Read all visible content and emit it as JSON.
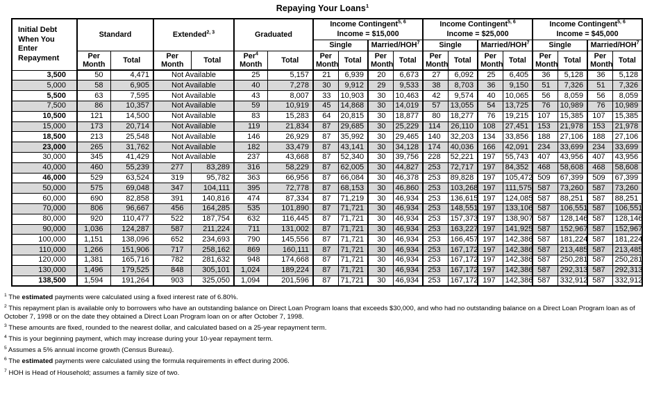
{
  "colors": {
    "stripe": "#d9d9d9",
    "border": "#000000",
    "text": "#000000"
  },
  "title": {
    "text": "Repaying Your Loans",
    "sup": "1"
  },
  "table": {
    "initial_debt_lines": [
      "Initial Debt",
      "When You",
      "Enter",
      "Repayment"
    ],
    "groups": {
      "standard": {
        "label": "Standard"
      },
      "extended": {
        "label": "Extended",
        "sup": "2, 3"
      },
      "graduated": {
        "label": "Graduated"
      },
      "income_contingent": {
        "label": "Income Contingent",
        "sup": "5, 6",
        "incomes": [
          "Income = $15,000",
          "Income = $25,000",
          "Income = $45,000"
        ]
      }
    },
    "subheaders": {
      "single": "Single",
      "married": "Married/HOH",
      "married_sup": "7",
      "per": "Per",
      "month": "Month",
      "total": "Total",
      "graduated_per_sup": "4"
    },
    "not_available": "Not Available",
    "rows": [
      {
        "debt": "3,500",
        "bold": true,
        "standard": [
          "50",
          "4,471"
        ],
        "extended": null,
        "graduated": [
          "25",
          "5,157"
        ],
        "ic15": [
          "21",
          "6,939",
          "20",
          "6,673"
        ],
        "ic25": [
          "27",
          "6,092",
          "25",
          "6,405"
        ],
        "ic45": [
          "36",
          "5,128",
          "36",
          "5,128"
        ]
      },
      {
        "debt": "5,000",
        "bold": false,
        "standard": [
          "58",
          "6,905"
        ],
        "extended": null,
        "graduated": [
          "40",
          "7,278"
        ],
        "ic15": [
          "30",
          "9,912",
          "29",
          "9,533"
        ],
        "ic25": [
          "38",
          "8,703",
          "36",
          "9,150"
        ],
        "ic45": [
          "51",
          "7,326",
          "51",
          "7,326"
        ]
      },
      {
        "debt": "5,500",
        "bold": true,
        "standard": [
          "63",
          "7,595"
        ],
        "extended": null,
        "graduated": [
          "43",
          "8,007"
        ],
        "ic15": [
          "33",
          "10,903",
          "30",
          "10,463"
        ],
        "ic25": [
          "42",
          "9,574",
          "40",
          "10,065"
        ],
        "ic45": [
          "56",
          "8,059",
          "56",
          "8,059"
        ]
      },
      {
        "debt": "7,500",
        "bold": false,
        "standard": [
          "86",
          "10,357"
        ],
        "extended": null,
        "graduated": [
          "59",
          "10,919"
        ],
        "ic15": [
          "45",
          "14,868",
          "30",
          "14,019"
        ],
        "ic25": [
          "57",
          "13,055",
          "54",
          "13,725"
        ],
        "ic45": [
          "76",
          "10,989",
          "76",
          "10,989"
        ]
      },
      {
        "debt": "10,500",
        "bold": true,
        "standard": [
          "121",
          "14,500"
        ],
        "extended": null,
        "graduated": [
          "83",
          "15,283"
        ],
        "ic15": [
          "64",
          "20,815",
          "30",
          "18,877"
        ],
        "ic25": [
          "80",
          "18,277",
          "76",
          "19,215"
        ],
        "ic45": [
          "107",
          "15,385",
          "107",
          "15,385"
        ]
      },
      {
        "debt": "15,000",
        "bold": false,
        "standard": [
          "173",
          "20,714"
        ],
        "extended": null,
        "graduated": [
          "119",
          "21,834"
        ],
        "ic15": [
          "87",
          "29,685",
          "30",
          "25,229"
        ],
        "ic25": [
          "114",
          "26,110",
          "108",
          "27,451"
        ],
        "ic45": [
          "153",
          "21,978",
          "153",
          "21,978"
        ]
      },
      {
        "debt": "18,500",
        "bold": true,
        "standard": [
          "213",
          "25,548"
        ],
        "extended": null,
        "graduated": [
          "146",
          "26,929"
        ],
        "ic15": [
          "87",
          "35,992",
          "30",
          "29,465"
        ],
        "ic25": [
          "140",
          "32,203",
          "134",
          "33,856"
        ],
        "ic45": [
          "188",
          "27,106",
          "188",
          "27,106"
        ]
      },
      {
        "debt": "23,000",
        "bold": true,
        "standard": [
          "265",
          "31,762"
        ],
        "extended": null,
        "graduated": [
          "182",
          "33,479"
        ],
        "ic15": [
          "87",
          "43,141",
          "30",
          "34,128"
        ],
        "ic25": [
          "174",
          "40,036",
          "166",
          "42,091"
        ],
        "ic45": [
          "234",
          "33,699",
          "234",
          "33,699"
        ]
      },
      {
        "debt": "30,000",
        "bold": false,
        "standard": [
          "345",
          "41,429"
        ],
        "extended": null,
        "graduated": [
          "237",
          "43,668"
        ],
        "ic15": [
          "87",
          "52,340",
          "30",
          "39,756"
        ],
        "ic25": [
          "228",
          "52,221",
          "197",
          "55,743"
        ],
        "ic45": [
          "407",
          "43,956",
          "407",
          "43,956"
        ]
      },
      {
        "debt": "40,000",
        "bold": false,
        "standard": [
          "460",
          "55,239"
        ],
        "extended": [
          "277",
          "83,289"
        ],
        "graduated": [
          "316",
          "58,229"
        ],
        "ic15": [
          "87",
          "62,005",
          "30",
          "44,827"
        ],
        "ic25": [
          "253",
          "72,717",
          "197",
          "84,352"
        ],
        "ic45": [
          "468",
          "58,608",
          "468",
          "58,608"
        ]
      },
      {
        "debt": "46,000",
        "bold": true,
        "standard": [
          "529",
          "63,524"
        ],
        "extended": [
          "319",
          "95,782"
        ],
        "graduated": [
          "363",
          "66,956"
        ],
        "ic15": [
          "87",
          "66,084",
          "30",
          "46,378"
        ],
        "ic25": [
          "253",
          "89,828",
          "197",
          "105,472"
        ],
        "ic45": [
          "509",
          "67,399",
          "509",
          "67,399"
        ]
      },
      {
        "debt": "50,000",
        "bold": false,
        "standard": [
          "575",
          "69,048"
        ],
        "extended": [
          "347",
          "104,111"
        ],
        "graduated": [
          "395",
          "72,778"
        ],
        "ic15": [
          "87",
          "68,153",
          "30",
          "46,860"
        ],
        "ic25": [
          "253",
          "103,268",
          "197",
          "111,575"
        ],
        "ic45": [
          "587",
          "73,260",
          "587",
          "73,260"
        ]
      },
      {
        "debt": "60,000",
        "bold": false,
        "standard": [
          "690",
          "82,858"
        ],
        "extended": [
          "391",
          "140,816"
        ],
        "graduated": [
          "474",
          "87,334"
        ],
        "ic15": [
          "87",
          "71,219",
          "30",
          "46,934"
        ],
        "ic25": [
          "253",
          "136,615",
          "197",
          "124,085"
        ],
        "ic45": [
          "587",
          "88,251",
          "587",
          "88,251"
        ]
      },
      {
        "debt": "70,000",
        "bold": false,
        "standard": [
          "806",
          "96,667"
        ],
        "extended": [
          "456",
          "164,285"
        ],
        "graduated": [
          "535",
          "101,890"
        ],
        "ic15": [
          "87",
          "71,721",
          "30",
          "46,934"
        ],
        "ic25": [
          "253",
          "148,551",
          "197",
          "133,106"
        ],
        "ic45": [
          "587",
          "106,551",
          "587",
          "106,551"
        ]
      },
      {
        "debt": "80,000",
        "bold": false,
        "standard": [
          "920",
          "110,477"
        ],
        "extended": [
          "522",
          "187,754"
        ],
        "graduated": [
          "632",
          "116,445"
        ],
        "ic15": [
          "87",
          "71,721",
          "30",
          "46,934"
        ],
        "ic25": [
          "253",
          "157,373",
          "197",
          "138,907"
        ],
        "ic45": [
          "587",
          "128,146",
          "587",
          "128,146"
        ]
      },
      {
        "debt": "90,000",
        "bold": false,
        "standard": [
          "1,036",
          "124,287"
        ],
        "extended": [
          "587",
          "211,224"
        ],
        "graduated": [
          "711",
          "131,002"
        ],
        "ic15": [
          "87",
          "71,721",
          "30",
          "46,934"
        ],
        "ic25": [
          "253",
          "163,227",
          "197",
          "141,925"
        ],
        "ic45": [
          "587",
          "152,967",
          "587",
          "152,967"
        ]
      },
      {
        "debt": "100,000",
        "bold": false,
        "standard": [
          "1,151",
          "138,096"
        ],
        "extended": [
          "652",
          "234,693"
        ],
        "graduated": [
          "790",
          "145,556"
        ],
        "ic15": [
          "87",
          "71,721",
          "30",
          "46,934"
        ],
        "ic25": [
          "253",
          "166,457",
          "197",
          "142,386"
        ],
        "ic45": [
          "587",
          "181,224",
          "587",
          "181,224"
        ]
      },
      {
        "debt": "110,000",
        "bold": false,
        "standard": [
          "1,266",
          "151,906"
        ],
        "extended": [
          "717",
          "258,162"
        ],
        "graduated": [
          "869",
          "160,111"
        ],
        "ic15": [
          "87",
          "71,721",
          "30",
          "46,934"
        ],
        "ic25": [
          "253",
          "167,172",
          "197",
          "142,386"
        ],
        "ic45": [
          "587",
          "213,485",
          "587",
          "213,485"
        ]
      },
      {
        "debt": "120,000",
        "bold": false,
        "standard": [
          "1,381",
          "165,716"
        ],
        "extended": [
          "782",
          "281,632"
        ],
        "graduated": [
          "948",
          "174,668"
        ],
        "ic15": [
          "87",
          "71,721",
          "30",
          "46,934"
        ],
        "ic25": [
          "253",
          "167,172",
          "197",
          "142,386"
        ],
        "ic45": [
          "587",
          "250,281",
          "587",
          "250,281"
        ]
      },
      {
        "debt": "130,000",
        "bold": false,
        "standard": [
          "1,496",
          "179,525"
        ],
        "extended": [
          "848",
          "305,101"
        ],
        "graduated": [
          "1,024",
          "189,224"
        ],
        "ic15": [
          "87",
          "71,721",
          "30",
          "46,934"
        ],
        "ic25": [
          "253",
          "167,172",
          "197",
          "142,386"
        ],
        "ic45": [
          "587",
          "292,313",
          "587",
          "292,313"
        ]
      },
      {
        "debt": "138,500",
        "bold": true,
        "standard": [
          "1,594",
          "191,264"
        ],
        "extended": [
          "903",
          "325,050"
        ],
        "graduated": [
          "1,094",
          "201,596"
        ],
        "ic15": [
          "87",
          "71,721",
          "30",
          "46,934"
        ],
        "ic25": [
          "253",
          "167,172",
          "197",
          "142,386"
        ],
        "ic45": [
          "587",
          "332,912",
          "587",
          "332,912"
        ]
      }
    ]
  },
  "footnotes": [
    {
      "sup": "1",
      "text": "The **estimated** payments were calculated using a fixed interest rate of 6.80%."
    },
    {
      "sup": "2",
      "text": "This repayment plan is available only to borrowers who have an outstanding balance on Direct Loan Program loans that exceeds $30,000, and who had no outstanding balance on a Direct Loan Program loan as of October 7, 1998 or on the date they obtained a Direct Loan Program loan on or after October 7, 1998."
    },
    {
      "sup": "3",
      "text": "These amounts are fixed, rounded to the nearest dollar, and calculated based on a 25-year repayment term."
    },
    {
      "sup": "4",
      "text": "This is your beginning payment, which may increase during your 10-year repayment term."
    },
    {
      "sup": "5",
      "text": "Assumes a 5% annual income growth (Census Bureau)."
    },
    {
      "sup": "6",
      "text": "The **estimated** payments were calculated using the formula requirements in effect during 2006."
    },
    {
      "sup": "7",
      "text": "HOH is Head of Household; assumes a family size of two."
    }
  ]
}
